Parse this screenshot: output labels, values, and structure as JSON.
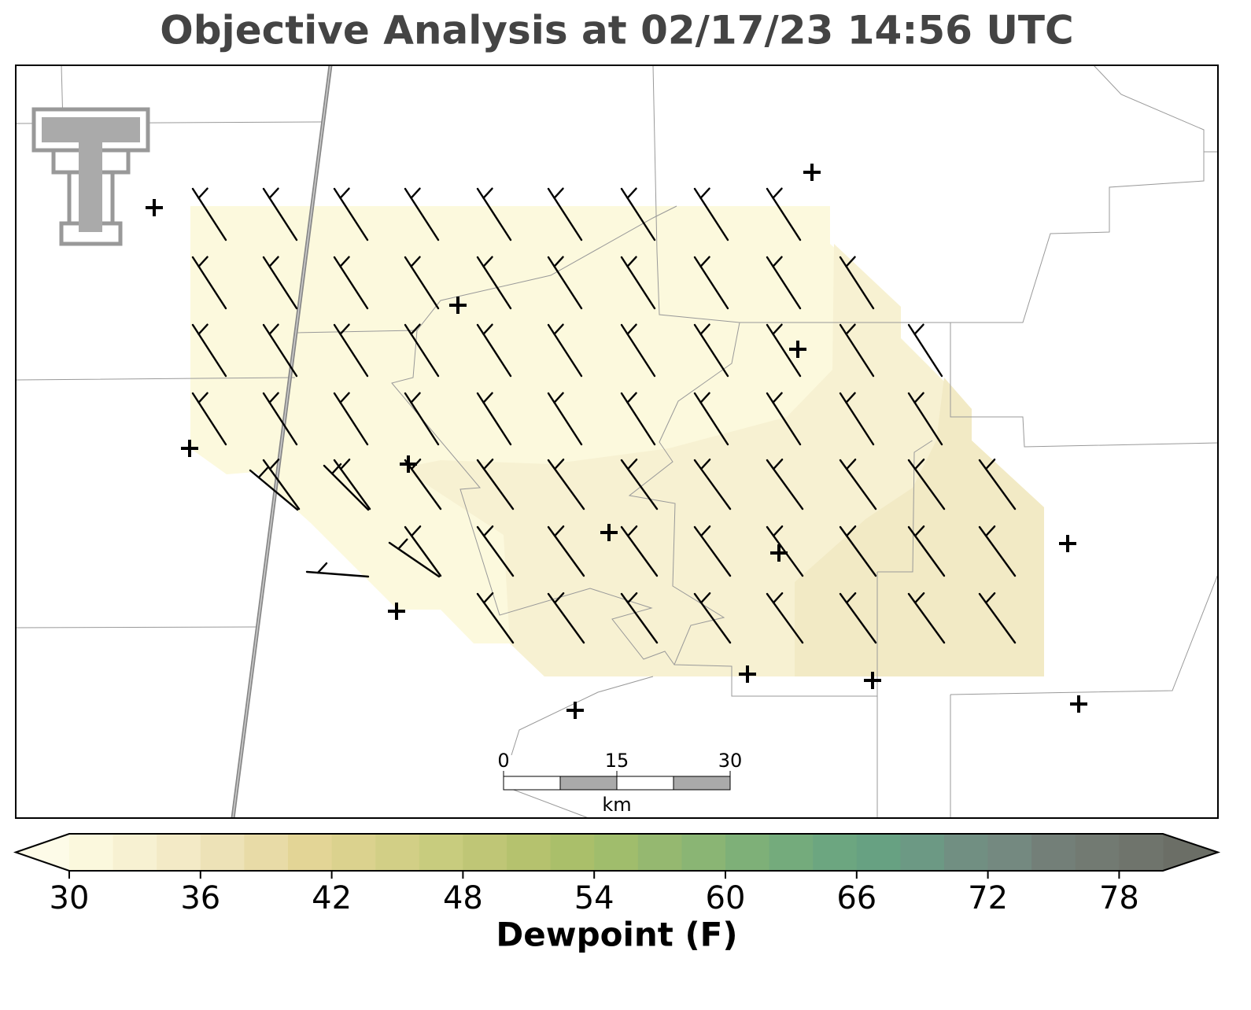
{
  "title": "Objective Analysis at 02/17/23 14:56 UTC",
  "colorbar": {
    "label": "Dewpoint (F)",
    "ticks": [
      30,
      36,
      42,
      48,
      54,
      60,
      66,
      72,
      78
    ],
    "levels": [
      30,
      32,
      34,
      36,
      38,
      40,
      42,
      44,
      46,
      48,
      50,
      52,
      54,
      56,
      58,
      60,
      62,
      64,
      66,
      68,
      70,
      72,
      74,
      76,
      78,
      80
    ],
    "colors": [
      "#fbf8dd",
      "#f7f1d2",
      "#f3eac6",
      "#ede2b7",
      "#e8dba7",
      "#e3d596",
      "#dbd28e",
      "#d2cf86",
      "#c8cc7e",
      "#bfc676",
      "#b5c26e",
      "#aabf6a",
      "#a0bd6c",
      "#95b870",
      "#8ab574",
      "#7eb078",
      "#74ab7c",
      "#6ca680",
      "#67a182",
      "#6c9984",
      "#718f82",
      "#748980",
      "#737f78",
      "#727a72",
      "#6f746c"
    ],
    "under_color": "#fdfbe8",
    "over_color": "#6b6e66"
  },
  "scale_bar": {
    "ticks": [
      0,
      15,
      30
    ],
    "unit": "km"
  }
}
